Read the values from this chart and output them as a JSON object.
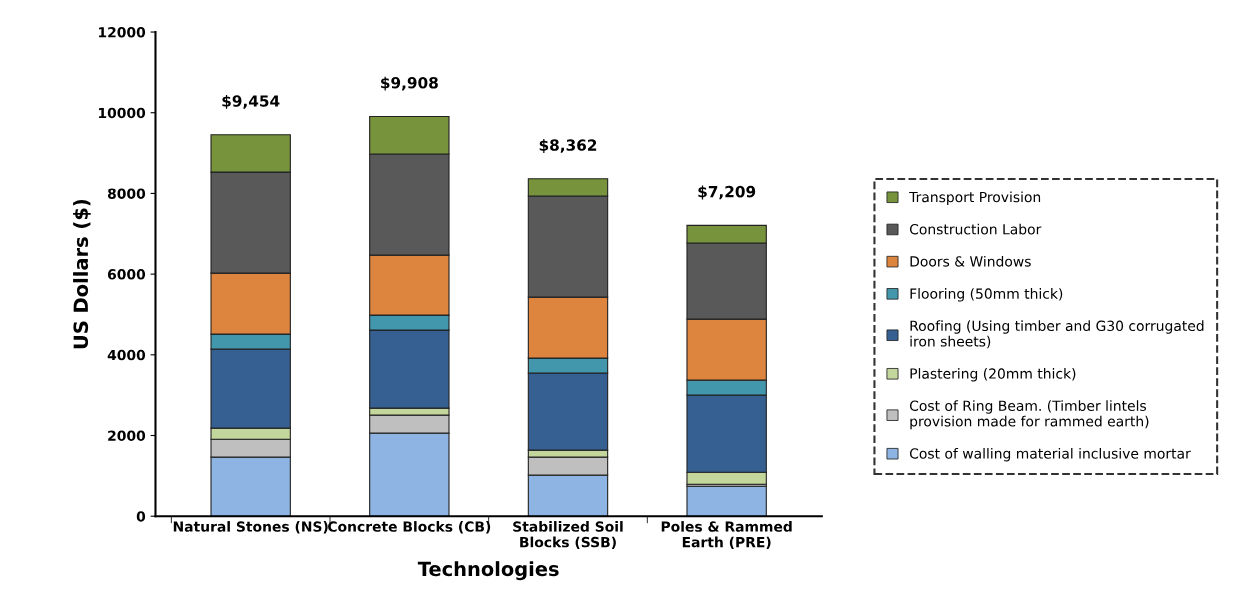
{
  "chart_data": {
    "type": "bar",
    "stacked": true,
    "xlabel": "Technologies",
    "ylabel": "US Dollars ($)",
    "categories": [
      "Natural Stones (NS)",
      "Concrete Blocks (CB)",
      "Stabilized Soil Blocks (SSB)",
      "Poles & Rammed Earth (PRE)"
    ],
    "series": [
      {
        "name": "Cost of walling material inclusive mortar",
        "color": "#8eb4e3",
        "values": [
          1463,
          2058,
          1017,
          744
        ]
      },
      {
        "name": "Cost of Ring Beam. (Timber lintels provision made for rammed earth)",
        "color": "#bfbfbf",
        "values": [
          446,
          446,
          446,
          49
        ]
      },
      {
        "name": "Plastering (20mm thick)",
        "color": "#c3d69b",
        "values": [
          273,
          174,
          174,
          298
        ]
      },
      {
        "name": "Roofing (Using timber and G30 corrugated iron sheets)",
        "color": "#376092",
        "values": [
          1959,
          1934,
          1909,
          1909
        ]
      },
      {
        "name": "Flooring (50mm thick)",
        "color": "#4397ad",
        "values": [
          372,
          372,
          372,
          372
        ]
      },
      {
        "name": "Doors & Windows",
        "color": "#dd843f",
        "values": [
          1512,
          1488,
          1512,
          1513
        ]
      },
      {
        "name": "Construction Labor",
        "color": "#595959",
        "values": [
          2504,
          2504,
          2505,
          1885
        ]
      },
      {
        "name": "Transport Provision",
        "color": "#77933c",
        "values": [
          925,
          932,
          427,
          439
        ]
      }
    ],
    "totals": [
      "$9,454",
      "$9,908",
      "$8,362",
      "$7,209"
    ],
    "ylim": [
      0,
      12000
    ],
    "yticks": [
      0,
      2000,
      4000,
      6000,
      8000,
      10000,
      12000
    ],
    "grid": false,
    "legend": "right"
  }
}
